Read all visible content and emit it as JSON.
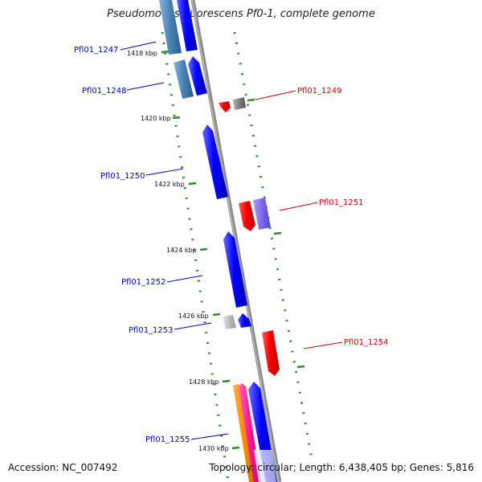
{
  "title": "Pseudomonas fluorescens Pf0-1, complete genome",
  "footer": {
    "accession": "Accession: NC_007492",
    "topology": "Topology: circular; Length: 6,438,405 bp; Genes: 5,816"
  },
  "ticks": [
    "1418 kbp",
    "1420 kbp",
    "1422 kbp",
    "1424 kbp",
    "1426 kbp",
    "1428 kbp",
    "1430 kbp"
  ],
  "genes": {
    "left": [
      {
        "label": "Pfl01_1247",
        "color": "#0000cc"
      },
      {
        "label": "Pfl01_1248",
        "color": "#0000cc"
      },
      {
        "label": "Pfl01_1250",
        "color": "#0000cc"
      },
      {
        "label": "Pfl01_1252",
        "color": "#0000cc"
      },
      {
        "label": "Pfl01_1253",
        "color": "#0000cc"
      },
      {
        "label": "Pfl01_1255",
        "color": "#0000cc"
      }
    ],
    "right": [
      {
        "label": "Pfl01_1249",
        "color": "#cc0000"
      },
      {
        "label": "Pfl01_1251",
        "color": "#cc0000"
      },
      {
        "label": "Pfl01_1254",
        "color": "#cc0000"
      }
    ]
  },
  "colors": {
    "backbone": "#8c8c8c",
    "dotted_track": "#2e8b2e",
    "forward_gene": "#0000ff",
    "reverse_gene": "#ff0000",
    "light_blue_feature": "#4682b4",
    "grey_feature": "#808080",
    "purple_feature": "#7b68ee",
    "orange_feature": "#ff8c00",
    "pink_feature": "#ff1493"
  }
}
